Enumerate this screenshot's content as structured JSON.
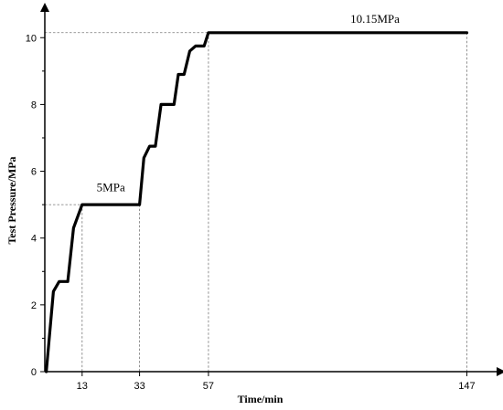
{
  "chart_data": {
    "type": "line",
    "title": "",
    "xlabel": "Time/min",
    "ylabel": "Test Pressure/MPa",
    "xlim": [
      0,
      158
    ],
    "ylim": [
      0,
      10.8
    ],
    "x_ticks": [
      {
        "value": 13,
        "label": "13"
      },
      {
        "value": 33,
        "label": "33"
      },
      {
        "value": 57,
        "label": "57"
      },
      {
        "value": 147,
        "label": "147"
      }
    ],
    "y_ticks": [
      {
        "value": 0,
        "label": "0"
      },
      {
        "value": 2,
        "label": "2"
      },
      {
        "value": 4,
        "label": "4"
      },
      {
        "value": 6,
        "label": "6"
      },
      {
        "value": 8,
        "label": "8"
      },
      {
        "value": 10,
        "label": "10"
      }
    ],
    "series": [
      {
        "x": [
          0.5,
          3.0,
          5.0,
          8.0,
          10.0,
          13.0,
          33.0,
          34.5,
          36.5,
          38.5,
          40.5,
          45.0,
          46.5,
          48.5,
          50.5,
          52.5,
          55.5,
          57.0,
          147.0
        ],
        "y": [
          0.0,
          2.4,
          2.7,
          2.7,
          4.3,
          5.0,
          5.0,
          6.4,
          6.75,
          6.75,
          8.0,
          8.0,
          8.9,
          8.9,
          9.6,
          9.75,
          9.75,
          10.15,
          10.15
        ]
      }
    ],
    "guides": [
      {
        "x": 13,
        "y": 5
      },
      {
        "x": 33,
        "y": 5
      },
      {
        "x": 57,
        "y": 10.15
      },
      {
        "x": 147,
        "y": 10.15
      }
    ],
    "annotations": [
      {
        "text": "5MPa",
        "x": 23,
        "y": 5.4
      },
      {
        "text": "10.15MPa",
        "x": 115,
        "y": 10.45
      }
    ],
    "grid": false,
    "legend": "none"
  }
}
